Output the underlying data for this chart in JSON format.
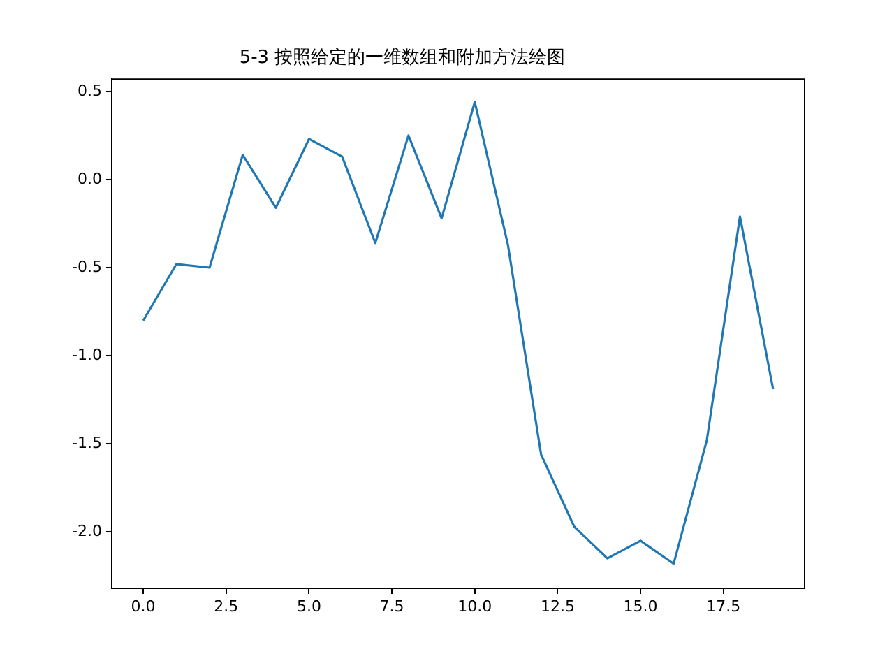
{
  "chart_data": {
    "type": "line",
    "title": "5-3 按照给定的一维数组和附加方法绘图",
    "x": [
      0,
      1,
      2,
      3,
      4,
      5,
      6,
      7,
      8,
      9,
      10,
      11,
      12,
      13,
      14,
      15,
      16,
      17,
      18,
      19
    ],
    "series": [
      {
        "color": "#1f77b4",
        "values": [
          -0.8,
          -0.48,
          -0.5,
          0.14,
          -0.16,
          0.23,
          0.13,
          -0.36,
          0.25,
          -0.22,
          0.44,
          -0.37,
          -1.56,
          -1.97,
          -2.15,
          -2.05,
          -2.18,
          -1.48,
          -0.21,
          -1.19
        ]
      }
    ],
    "xlim": [
      -0.95,
      19.95
    ],
    "xticks": [
      {
        "value": 0,
        "label": "0.0"
      },
      {
        "value": 2.5,
        "label": "2.5"
      },
      {
        "value": 5,
        "label": "5.0"
      },
      {
        "value": 7.5,
        "label": "7.5"
      },
      {
        "value": 10,
        "label": "10.0"
      },
      {
        "value": 12.5,
        "label": "12.5"
      },
      {
        "value": 15,
        "label": "15.0"
      },
      {
        "value": 17.5,
        "label": "17.5"
      }
    ],
    "ylim": [
      -2.32,
      0.57
    ],
    "yticks": [
      {
        "value": -2,
        "label": "-2.0"
      },
      {
        "value": -1.5,
        "label": "-1.5"
      },
      {
        "value": -1,
        "label": "-1.0"
      },
      {
        "value": -0.5,
        "label": "-0.5"
      },
      {
        "value": 0,
        "label": "0.0"
      },
      {
        "value": 0.5,
        "label": "0.5"
      }
    ]
  }
}
